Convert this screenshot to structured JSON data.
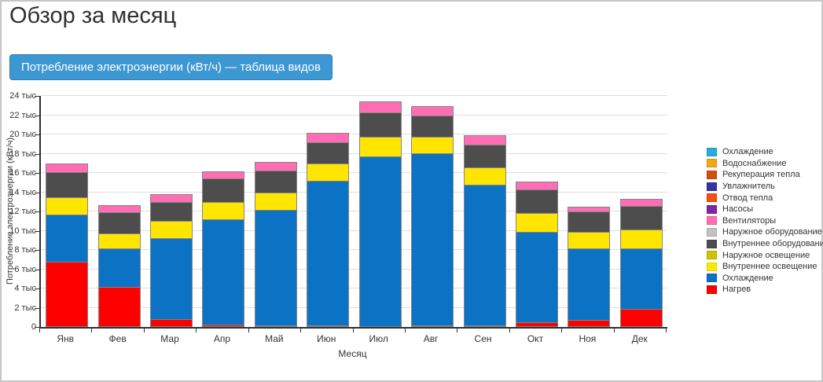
{
  "page": {
    "title": "Обзор за месяц"
  },
  "toolbar": {
    "table_button_label": "Потребление электроэнергии (кВт/ч) — таблица видов"
  },
  "chart_data": {
    "type": "bar",
    "stacked": true,
    "title": "",
    "xlabel": "Месяц",
    "ylabel": "Потребление электроэнергии (кВт/ч)",
    "unit": "тыс кВт/ч",
    "ylim": [
      0,
      24
    ],
    "ytick_step": 2,
    "ytick_suffix": " тыс",
    "grid": true,
    "legend_position": "right",
    "categories": [
      "Янв",
      "Фев",
      "Мар",
      "Апр",
      "Май",
      "Июн",
      "Июл",
      "Авг",
      "Сен",
      "Окт",
      "Ноя",
      "Дек"
    ],
    "series": [
      {
        "name": "Нагрев",
        "color": "#ff0000",
        "values": [
          6.8,
          4.2,
          0.8,
          0.25,
          0.2,
          0.1,
          0,
          0.05,
          0.1,
          0.5,
          0.7,
          1.9
        ]
      },
      {
        "name": "Охлаждение",
        "color": "#0b72c4",
        "values": [
          5.0,
          4.1,
          8.5,
          11.05,
          12.1,
          15.1,
          17.7,
          17.95,
          14.7,
          9.5,
          7.5,
          6.4
        ]
      },
      {
        "name": "Внутреннее освещение",
        "color": "#ffe500",
        "values": [
          1.9,
          1.6,
          1.9,
          1.9,
          1.9,
          1.9,
          2.1,
          1.8,
          1.85,
          2.0,
          1.8,
          2.0
        ]
      },
      {
        "name": "Внутреннее оборудование",
        "color": "#4d4d4d",
        "values": [
          2.7,
          2.3,
          2.0,
          2.5,
          2.4,
          2.3,
          2.6,
          2.3,
          2.45,
          2.5,
          2.2,
          2.5
        ]
      },
      {
        "name": "Вентиляторы",
        "color": "#ff6eb4",
        "values": [
          1.0,
          0.8,
          0.9,
          0.8,
          1.0,
          1.1,
          1.2,
          1.1,
          1.1,
          0.9,
          0.6,
          0.8
        ]
      }
    ]
  },
  "legend": {
    "items": [
      {
        "label": "Охлаждение",
        "color": "#29abe2"
      },
      {
        "label": "Водоснабжение",
        "color": "#f5a618"
      },
      {
        "label": "Рекуперация тепла",
        "color": "#d2500f"
      },
      {
        "label": "Увлажнитель",
        "color": "#3733a3"
      },
      {
        "label": "Отвод тепла",
        "color": "#fa4f0c"
      },
      {
        "label": "Насосы",
        "color": "#7d26a8"
      },
      {
        "label": "Вентиляторы",
        "color": "#ff6eb4"
      },
      {
        "label": "Наружное оборудование",
        "color": "#c2c2c2"
      },
      {
        "label": "Внутреннее оборудование",
        "color": "#4d4d4d"
      },
      {
        "label": "Наружное освещение",
        "color": "#d0c400"
      },
      {
        "label": "Внутреннее освещение",
        "color": "#ffeb00"
      },
      {
        "label": "Охлаждение",
        "color": "#0b72c4"
      },
      {
        "label": "Нагрев",
        "color": "#ff0000"
      }
    ]
  }
}
